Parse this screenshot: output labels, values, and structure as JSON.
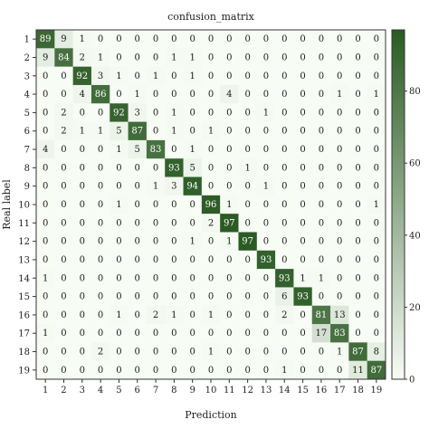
{
  "chart_data": {
    "type": "heatmap",
    "title": "confusion_matrix",
    "xlabel": "Prediction",
    "ylabel": "Real label",
    "labels": [
      "1",
      "2",
      "3",
      "4",
      "5",
      "6",
      "7",
      "8",
      "9",
      "10",
      "11",
      "12",
      "13",
      "14",
      "15",
      "16",
      "17",
      "18",
      "19"
    ],
    "matrix": [
      [
        89,
        9,
        1,
        0,
        0,
        0,
        0,
        0,
        0,
        0,
        0,
        0,
        0,
        0,
        0,
        0,
        0,
        0,
        0
      ],
      [
        9,
        84,
        2,
        1,
        0,
        0,
        0,
        1,
        1,
        0,
        0,
        0,
        0,
        0,
        0,
        0,
        0,
        0,
        0
      ],
      [
        0,
        0,
        92,
        3,
        1,
        0,
        1,
        0,
        1,
        0,
        0,
        0,
        0,
        0,
        0,
        0,
        0,
        0,
        0
      ],
      [
        0,
        0,
        4,
        86,
        0,
        1,
        0,
        0,
        0,
        0,
        4,
        0,
        0,
        0,
        0,
        0,
        1,
        0,
        1
      ],
      [
        0,
        2,
        0,
        0,
        92,
        3,
        0,
        1,
        0,
        0,
        0,
        0,
        1,
        0,
        0,
        0,
        0,
        0,
        0
      ],
      [
        0,
        2,
        1,
        1,
        5,
        87,
        0,
        1,
        0,
        1,
        0,
        0,
        0,
        0,
        0,
        0,
        0,
        0,
        0
      ],
      [
        4,
        0,
        0,
        0,
        1,
        5,
        83,
        0,
        1,
        0,
        0,
        0,
        0,
        0,
        0,
        0,
        0,
        0,
        0
      ],
      [
        0,
        0,
        0,
        0,
        0,
        0,
        0,
        93,
        5,
        0,
        0,
        1,
        0,
        0,
        0,
        0,
        0,
        0,
        0
      ],
      [
        0,
        0,
        0,
        0,
        0,
        0,
        1,
        3,
        94,
        0,
        0,
        0,
        1,
        0,
        0,
        0,
        0,
        0,
        0
      ],
      [
        0,
        0,
        0,
        0,
        1,
        0,
        0,
        0,
        0,
        96,
        1,
        0,
        0,
        0,
        0,
        0,
        0,
        0,
        1
      ],
      [
        0,
        0,
        0,
        0,
        0,
        0,
        0,
        0,
        0,
        2,
        97,
        0,
        0,
        0,
        0,
        0,
        0,
        0,
        0
      ],
      [
        0,
        0,
        0,
        0,
        0,
        0,
        0,
        0,
        1,
        0,
        1,
        97,
        0,
        0,
        0,
        0,
        0,
        0,
        0
      ],
      [
        0,
        0,
        0,
        0,
        0,
        0,
        0,
        0,
        0,
        0,
        0,
        0,
        93,
        0,
        0,
        0,
        0,
        0,
        0
      ],
      [
        1,
        0,
        0,
        0,
        0,
        0,
        0,
        0,
        0,
        0,
        0,
        0,
        0,
        93,
        1,
        1,
        0,
        0,
        0
      ],
      [
        0,
        0,
        0,
        0,
        0,
        0,
        0,
        0,
        0,
        0,
        0,
        0,
        0,
        6,
        93,
        0,
        0,
        0,
        0
      ],
      [
        0,
        0,
        0,
        0,
        1,
        0,
        2,
        1,
        0,
        1,
        0,
        0,
        0,
        2,
        0,
        81,
        13,
        0,
        0
      ],
      [
        1,
        0,
        0,
        0,
        0,
        0,
        0,
        0,
        0,
        0,
        0,
        0,
        0,
        0,
        0,
        17,
        83,
        0,
        0
      ],
      [
        0,
        0,
        0,
        2,
        0,
        0,
        0,
        0,
        0,
        1,
        0,
        0,
        0,
        0,
        0,
        0,
        1,
        87,
        8
      ],
      [
        0,
        0,
        0,
        0,
        0,
        0,
        0,
        0,
        0,
        0,
        0,
        0,
        0,
        1,
        0,
        0,
        0,
        11,
        87
      ]
    ],
    "vmin": 0,
    "vmax": 97,
    "colorbar_ticks": [
      0,
      20,
      40,
      60,
      80
    ],
    "colors": {
      "low": "#f7fcf5",
      "high": "#2b5a24",
      "text_dark": "#1a1a1a",
      "text_light": "#ffffff"
    },
    "grid": false,
    "colorbar_position": "right"
  }
}
